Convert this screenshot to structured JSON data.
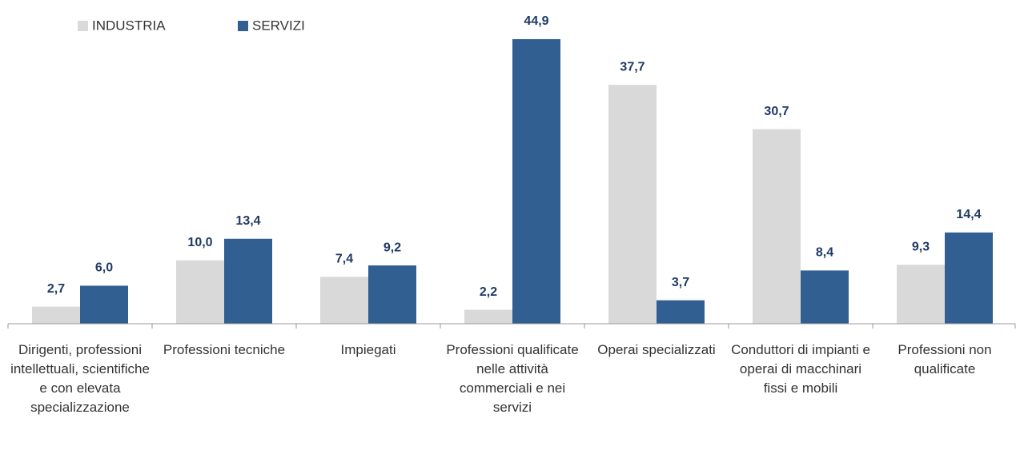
{
  "chart_data": {
    "type": "bar",
    "categories": [
      "Dirigenti, professioni intellettuali, scientifiche e con elevata specializzazione",
      "Professioni tecniche",
      "Impiegati",
      "Professioni qualificate nelle attività commerciali e nei servizi",
      "Operai specializzati",
      "Conduttori di impianti e operai di macchinari fissi e mobili",
      "Professioni non qualificate"
    ],
    "series": [
      {
        "name": "INDUSTRIA",
        "color": "#d9d9d9",
        "values": [
          2.7,
          10.0,
          7.4,
          2.2,
          37.7,
          30.7,
          9.3
        ],
        "value_labels": [
          "2,7",
          "10,0",
          "7,4",
          "2,2",
          "37,7",
          "30,7",
          "9,3"
        ]
      },
      {
        "name": "SERVIZI",
        "color": "#315f91",
        "values": [
          6.0,
          13.4,
          9.2,
          44.9,
          3.7,
          8.4,
          14.4
        ],
        "value_labels": [
          "6,0",
          "13,4",
          "9,2",
          "44,9",
          "3,7",
          "8,4",
          "14,4"
        ]
      }
    ],
    "legend": "top-left"
  }
}
